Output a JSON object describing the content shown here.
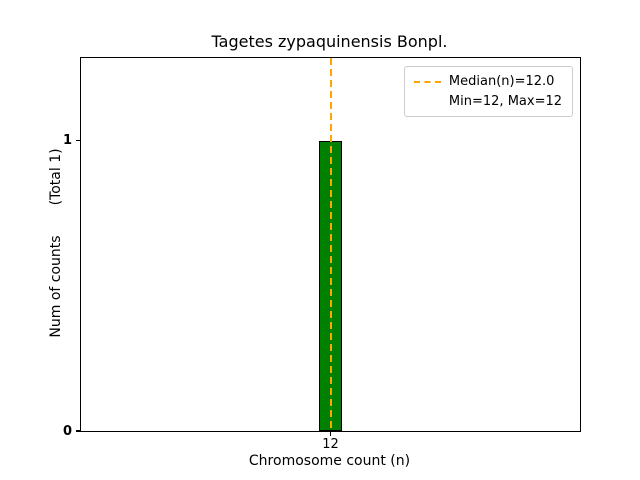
{
  "chart_data": {
    "type": "bar",
    "title": "Tagetes zypaquinensis Bonpl.",
    "xlabel": "Chromosome count (n)",
    "ylabel": "Num of counts",
    "ylabel_secondary": "(Total 1)",
    "x": [
      12
    ],
    "counts": [
      1
    ],
    "bar_width": 0.05,
    "xlim": [
      11.45,
      12.55
    ],
    "ylim": [
      0,
      1.285
    ],
    "xticks": [
      {
        "value": 12,
        "label": "12"
      }
    ],
    "yticks": [
      {
        "value": 0,
        "label": "0"
      },
      {
        "value": 1,
        "label": "1"
      }
    ],
    "median": 12.0,
    "min": 12,
    "max": 12,
    "bar_color": "#008000",
    "bar_edge_color": "#000000",
    "median_line_color": "#FFA500",
    "legend": {
      "position": "upper-right",
      "items": [
        {
          "label": "Median(n)=12.0",
          "sample": "dashed-line"
        },
        {
          "label": "Min=12, Max=12",
          "sample": "none"
        }
      ]
    },
    "grid": false
  }
}
